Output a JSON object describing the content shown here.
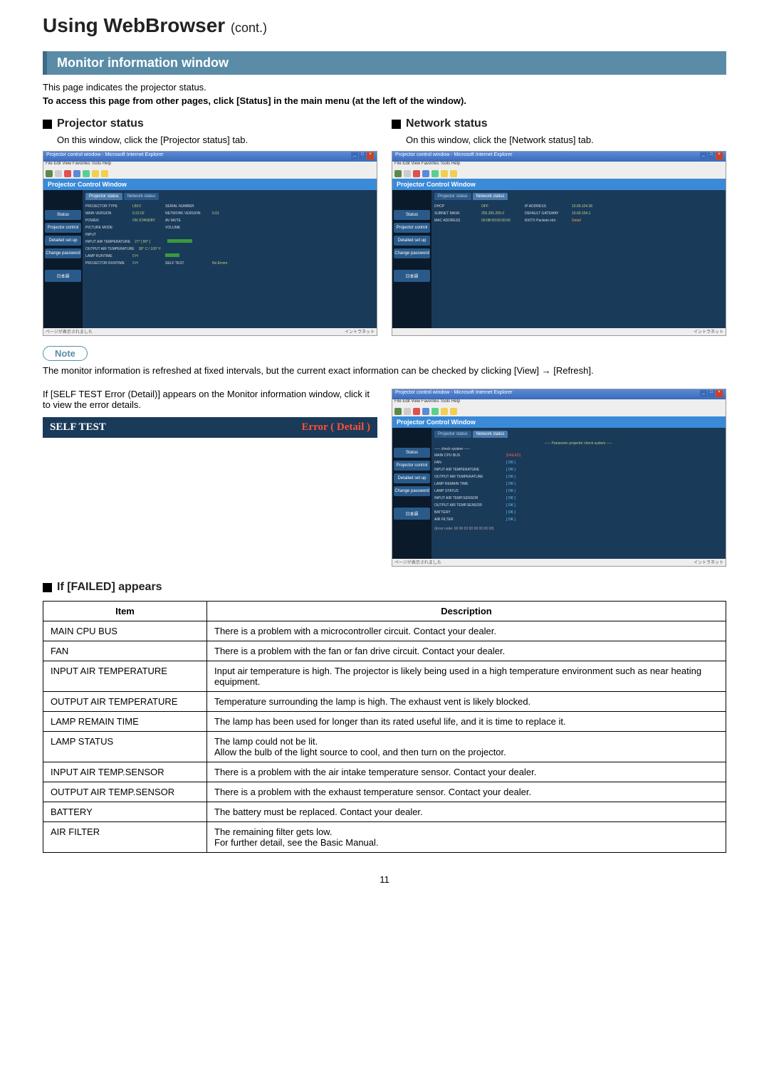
{
  "page": {
    "title": "Using WebBrowser",
    "title_suffix": "(cont.)",
    "number": "11"
  },
  "section": {
    "header": "Monitor information window",
    "intro": "This page indicates the projector status.",
    "intro_bold": "To access this page from other pages, click [Status] in the main menu (at the left of the window)."
  },
  "projector_status": {
    "header": "Projector status",
    "text": "On this window, click the [Projector status] tab.",
    "window": {
      "title": "Projector Control Window",
      "tabs": {
        "active": "Projector status",
        "other": "Network status"
      },
      "sidebar": [
        "Status",
        "Projector control",
        "Detailed set up",
        "Change password",
        "日本語"
      ],
      "rows": [
        {
          "labels": [
            "PROJECTOR TYPE",
            "SERIAL NUMBER"
          ],
          "vals": [
            "LB1V",
            ""
          ]
        },
        {
          "labels": [
            "MAIN VERSION",
            "NETWORK VERSION"
          ],
          "vals": [
            "0.22.02",
            "0.01"
          ]
        },
        {
          "labels": [
            "POWER",
            "AV MUTE"
          ],
          "vals": [
            "ON  STANDBY",
            ""
          ]
        },
        {
          "labels": [
            "PICTURE MODE",
            "VOLUME"
          ],
          "vals": [
            "",
            ""
          ]
        },
        {
          "labels": [
            "INPUT"
          ],
          "vals": [
            ""
          ]
        },
        {
          "labels": [
            "INPUT AIR TEMPERATURE"
          ],
          "vals": [
            "27° [ 80° ]"
          ],
          "bar": 35
        },
        {
          "labels": [
            "OUTPUT AIR TEMPERATURE"
          ],
          "vals": [
            "38° C / 100° F"
          ]
        },
        {
          "labels": [
            "LAMP RUNTIME"
          ],
          "vals": [
            "0 H"
          ],
          "bar": 20
        },
        {
          "labels": [
            "PROJECTOR RUNTIME",
            "SELF TEST"
          ],
          "vals": [
            "3 H",
            "No Errors"
          ]
        }
      ]
    }
  },
  "network_status": {
    "header": "Network status",
    "text": "On this window, click the [Network status] tab.",
    "window": {
      "title": "Projector Control Window",
      "tabs": {
        "active": "Network status",
        "other": "Projector status"
      },
      "sidebar": [
        "Status",
        "Projector control",
        "Detailed set up",
        "Change password",
        "日本語"
      ],
      "rows": [
        {
          "labels": [
            "DHCP",
            "IP ADDRESS"
          ],
          "vals": [
            "OFF",
            "10.69.104.36"
          ]
        },
        {
          "labels": [
            "SUBNET MASK",
            "DEFAULT GATEWAY"
          ],
          "vals": [
            "255.255.255.0",
            "10.69.104.1"
          ]
        },
        {
          "labels": [
            "MAC ADDRESS",
            "RX/TX Packets info"
          ],
          "vals": [
            "00:0B:00:00:00:00",
            "Detail"
          ]
        }
      ]
    }
  },
  "note": {
    "label": "Note",
    "text": "The monitor information is refreshed at fixed intervals, but the current exact information can be checked by clicking [View] → [Refresh]."
  },
  "error": {
    "text1": "If [SELF TEST Error (Detail)] appears on the Monitor information window, click it to view the error details.",
    "self_test_label": "SELF TEST",
    "self_test_err": "Error ( Detail )",
    "window": {
      "title": "Projector Control Window",
      "subtitle": "----- Panasonic projector check system -----",
      "check": "----- check system -----",
      "sidebar": [
        "Status",
        "Projector control",
        "Detailed set up",
        "Change password",
        "日本語"
      ],
      "items": [
        {
          "label": "MAIN CPU BUS",
          "status": "[FAILED]",
          "failed": true
        },
        {
          "label": "FAN",
          "status": "[ OK ]"
        },
        {
          "label": "INPUT AIR TEMPERATURE",
          "status": "[ OK ]"
        },
        {
          "label": "OUTPUT AIR TEMPERATURE",
          "status": "[ OK ]"
        },
        {
          "label": "LAMP REMAIN TIME",
          "status": "[ OK ]"
        },
        {
          "label": "LAMP STATUS",
          "status": "[ OK ]"
        },
        {
          "label": "INPUT AIR TEMP.SENSOR",
          "status": "[ OK ]"
        },
        {
          "label": "OUTPUT AIR TEMP.SENSOR",
          "status": "[ OK ]"
        },
        {
          "label": "BATTERY",
          "status": "[ OK ]"
        },
        {
          "label": "AIR FILTER",
          "status": "[ OK ]"
        }
      ],
      "footer": "(Error code: 00 00 03 00 00 00 00 00)"
    }
  },
  "failed": {
    "header": "If [FAILED] appears",
    "columns": [
      "Item",
      "Description"
    ],
    "rows": [
      {
        "item": "MAIN CPU BUS",
        "desc": "There is a problem with a microcontroller circuit. Contact your dealer."
      },
      {
        "item": "FAN",
        "desc": "There is a problem with the fan or fan drive circuit. Contact your dealer."
      },
      {
        "item": "INPUT AIR TEMPERATURE",
        "desc": "Input air temperature is high. The projector is likely being used in a high temperature environment such as near heating equipment."
      },
      {
        "item": "OUTPUT AIR TEMPERATURE",
        "desc": "Temperature surrounding the lamp is high. The exhaust vent is likely blocked."
      },
      {
        "item": "LAMP REMAIN TIME",
        "desc": "The lamp has been used for longer than its rated useful life, and it is time to replace it."
      },
      {
        "item": "LAMP STATUS",
        "desc": "The lamp could not be lit.\nAllow the bulb of the light source to cool, and then turn on the projector."
      },
      {
        "item": "INPUT AIR TEMP.SENSOR",
        "desc": "There is a problem with the air intake temperature sensor. Contact your dealer."
      },
      {
        "item": "OUTPUT AIR TEMP.SENSOR",
        "desc": "There is a problem with the exhaust temperature sensor. Contact your dealer."
      },
      {
        "item": "BATTERY",
        "desc": "The battery must be replaced. Contact your dealer."
      },
      {
        "item": "AIR FILTER",
        "desc": "The remaining filter gets low.\nFor further detail, see the Basic Manual."
      }
    ]
  }
}
